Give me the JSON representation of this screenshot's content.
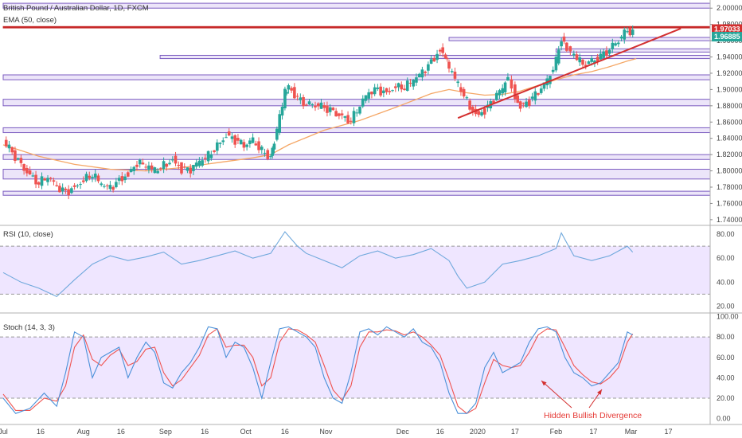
{
  "chart_data": {
    "type": "candlestick",
    "title": "British Pound / Australian Dollar, 1D, FXCM",
    "indicator": "EMA (50, close)",
    "price_axis": {
      "ticks": [
        "2.00000",
        "1.98000",
        "1.96000",
        "1.94000",
        "1.92000",
        "1.90000",
        "1.88000",
        "1.86000",
        "1.84000",
        "1.82000",
        "1.80000",
        "1.78000",
        "1.76000",
        "1.74000"
      ],
      "range": [
        1.734,
        2.01
      ]
    },
    "last_price_tags": [
      {
        "label": "1.97033",
        "value": 1.97033,
        "color": "#d32f2f"
      },
      {
        "label": "1.96885",
        "value": 1.96885,
        "color": "#26a69a"
      }
    ],
    "x_labels": [
      "Jul",
      "16",
      "Aug",
      "16",
      "Sep",
      "16",
      "Oct",
      "16",
      "Nov",
      "Dec",
      "16",
      "2020",
      "17",
      "Feb",
      "17",
      "Mar",
      "17"
    ],
    "x_label_weeks": [
      0,
      2.1,
      4.5,
      6.6,
      9.1,
      11.3,
      13.6,
      15.8,
      18.1,
      22.4,
      24.5,
      26.6,
      28.7,
      31,
      33.1,
      35.2,
      37.3
    ],
    "close_points": [
      [
        0,
        1.835
      ],
      [
        0.5,
        1.822
      ],
      [
        1,
        1.808
      ],
      [
        1.5,
        1.796
      ],
      [
        2,
        1.785
      ],
      [
        2.5,
        1.792
      ],
      [
        3,
        1.779
      ],
      [
        3.5,
        1.774
      ],
      [
        4,
        1.781
      ],
      [
        4.5,
        1.79
      ],
      [
        5,
        1.795
      ],
      [
        5.5,
        1.782
      ],
      [
        6,
        1.778
      ],
      [
        6.5,
        1.79
      ],
      [
        7,
        1.797
      ],
      [
        7.5,
        1.81
      ],
      [
        8,
        1.805
      ],
      [
        8.5,
        1.799
      ],
      [
        9,
        1.807
      ],
      [
        9.5,
        1.815
      ],
      [
        10,
        1.803
      ],
      [
        10.5,
        1.801
      ],
      [
        11,
        1.81
      ],
      [
        11.5,
        1.818
      ],
      [
        12,
        1.832
      ],
      [
        12.5,
        1.845
      ],
      [
        13,
        1.838
      ],
      [
        13.5,
        1.83
      ],
      [
        14,
        1.837
      ],
      [
        14.5,
        1.825
      ],
      [
        15,
        1.818
      ],
      [
        15.2,
        1.835
      ],
      [
        15.5,
        1.865
      ],
      [
        15.8,
        1.895
      ],
      [
        16,
        1.905
      ],
      [
        16.5,
        1.89
      ],
      [
        17,
        1.882
      ],
      [
        17.5,
        1.88
      ],
      [
        18,
        1.877
      ],
      [
        18.5,
        1.873
      ],
      [
        19,
        1.868
      ],
      [
        19.5,
        1.862
      ],
      [
        20,
        1.88
      ],
      [
        20.5,
        1.895
      ],
      [
        21,
        1.9
      ],
      [
        21.5,
        1.897
      ],
      [
        22,
        1.905
      ],
      [
        22.5,
        1.902
      ],
      [
        23,
        1.91
      ],
      [
        23.5,
        1.92
      ],
      [
        24,
        1.935
      ],
      [
        24.5,
        1.95
      ],
      [
        24.8,
        1.94
      ],
      [
        25,
        1.925
      ],
      [
        25.5,
        1.905
      ],
      [
        26,
        1.885
      ],
      [
        26.5,
        1.87
      ],
      [
        27,
        1.875
      ],
      [
        27.5,
        1.888
      ],
      [
        28,
        1.9
      ],
      [
        28.3,
        1.915
      ],
      [
        28.7,
        1.892
      ],
      [
        29,
        1.88
      ],
      [
        29.5,
        1.886
      ],
      [
        30,
        1.896
      ],
      [
        30.5,
        1.91
      ],
      [
        31,
        1.935
      ],
      [
        31.3,
        1.965
      ],
      [
        31.6,
        1.95
      ],
      [
        32,
        1.94
      ],
      [
        32.5,
        1.93
      ],
      [
        33,
        1.935
      ],
      [
        33.5,
        1.942
      ],
      [
        34,
        1.95
      ],
      [
        34.5,
        1.96
      ],
      [
        35,
        1.972
      ],
      [
        35.3,
        1.969
      ]
    ],
    "ema_points": [
      [
        0,
        1.832
      ],
      [
        2,
        1.818
      ],
      [
        4,
        1.808
      ],
      [
        6,
        1.802
      ],
      [
        8,
        1.8
      ],
      [
        10,
        1.804
      ],
      [
        12,
        1.81
      ],
      [
        14,
        1.816
      ],
      [
        15,
        1.82
      ],
      [
        16,
        1.832
      ],
      [
        18,
        1.85
      ],
      [
        20,
        1.862
      ],
      [
        22,
        1.878
      ],
      [
        24,
        1.895
      ],
      [
        25,
        1.9
      ],
      [
        26,
        1.896
      ],
      [
        27,
        1.893
      ],
      [
        28,
        1.894
      ],
      [
        29,
        1.898
      ],
      [
        30,
        1.905
      ],
      [
        31,
        1.912
      ],
      [
        32,
        1.918
      ],
      [
        33,
        1.922
      ],
      [
        34,
        1.928
      ],
      [
        35,
        1.935
      ],
      [
        35.5,
        1.938
      ]
    ],
    "horizontal_zones": [
      {
        "low": 2.0,
        "high": 2.006,
        "from": 0
      },
      {
        "low": 1.9765,
        "high": 1.9775,
        "from": 0,
        "color": "#c62828"
      },
      {
        "low": 1.96,
        "high": 1.964,
        "from": 25
      },
      {
        "low": 1.946,
        "high": 1.95,
        "from": 31
      },
      {
        "low": 1.938,
        "high": 1.942,
        "from": 8.8
      },
      {
        "low": 1.912,
        "high": 1.918,
        "from": 0
      },
      {
        "low": 1.88,
        "high": 1.888,
        "from": 0
      },
      {
        "low": 1.847,
        "high": 1.853,
        "from": 0
      },
      {
        "low": 1.814,
        "high": 1.82,
        "from": 0
      },
      {
        "low": 1.79,
        "high": 1.802,
        "from": 0
      },
      {
        "low": 1.77,
        "high": 1.775,
        "from": 0
      }
    ],
    "trendline": {
      "from": [
        25.5,
        1.865
      ],
      "to": [
        38,
        1.975
      ],
      "color": "#d32f2f"
    },
    "rsi": {
      "label": "RSI (10, close)",
      "ticks": [
        "80.00",
        "60.00",
        "40.00",
        "20.00"
      ],
      "range": [
        15,
        86
      ],
      "band": [
        30,
        70
      ],
      "points": [
        [
          0,
          48
        ],
        [
          1,
          40
        ],
        [
          2,
          35
        ],
        [
          3,
          28
        ],
        [
          4,
          42
        ],
        [
          5,
          55
        ],
        [
          6,
          62
        ],
        [
          7,
          58
        ],
        [
          8,
          61
        ],
        [
          9,
          65
        ],
        [
          10,
          55
        ],
        [
          11,
          58
        ],
        [
          12,
          62
        ],
        [
          13,
          66
        ],
        [
          14,
          60
        ],
        [
          15,
          64
        ],
        [
          15.8,
          82
        ],
        [
          16.5,
          70
        ],
        [
          17,
          64
        ],
        [
          18,
          58
        ],
        [
          19,
          52
        ],
        [
          20,
          62
        ],
        [
          21,
          66
        ],
        [
          22,
          60
        ],
        [
          23,
          63
        ],
        [
          24,
          68
        ],
        [
          25,
          58
        ],
        [
          25.5,
          45
        ],
        [
          26,
          35
        ],
        [
          27,
          40
        ],
        [
          28,
          55
        ],
        [
          29,
          58
        ],
        [
          30,
          62
        ],
        [
          31,
          68
        ],
        [
          31.3,
          81
        ],
        [
          32,
          62
        ],
        [
          33,
          58
        ],
        [
          34,
          62
        ],
        [
          35,
          70
        ],
        [
          35.3,
          65
        ]
      ]
    },
    "stoch": {
      "label": "Stoch (14, 3, 3)",
      "ticks": [
        "100.00",
        "80.00",
        "60.00",
        "40.00",
        "20.00",
        "0.00"
      ],
      "range": [
        -5,
        102
      ],
      "band": [
        20,
        80
      ],
      "k": [
        [
          0,
          20
        ],
        [
          0.7,
          5
        ],
        [
          1.5,
          10
        ],
        [
          2.3,
          25
        ],
        [
          3,
          12
        ],
        [
          3.5,
          45
        ],
        [
          4,
          85
        ],
        [
          4.5,
          80
        ],
        [
          5,
          40
        ],
        [
          5.5,
          60
        ],
        [
          6,
          65
        ],
        [
          6.5,
          70
        ],
        [
          7,
          40
        ],
        [
          7.5,
          60
        ],
        [
          8,
          75
        ],
        [
          8.5,
          65
        ],
        [
          9,
          35
        ],
        [
          9.5,
          30
        ],
        [
          10,
          45
        ],
        [
          10.5,
          55
        ],
        [
          11,
          70
        ],
        [
          11.5,
          90
        ],
        [
          12,
          88
        ],
        [
          12.5,
          60
        ],
        [
          13,
          75
        ],
        [
          13.5,
          70
        ],
        [
          14,
          50
        ],
        [
          14.5,
          20
        ],
        [
          15,
          55
        ],
        [
          15.5,
          88
        ],
        [
          16,
          90
        ],
        [
          16.5,
          85
        ],
        [
          17,
          80
        ],
        [
          17.5,
          70
        ],
        [
          18,
          40
        ],
        [
          18.5,
          20
        ],
        [
          19,
          15
        ],
        [
          19.5,
          45
        ],
        [
          20,
          85
        ],
        [
          20.5,
          88
        ],
        [
          21,
          82
        ],
        [
          21.5,
          90
        ],
        [
          22,
          85
        ],
        [
          22.5,
          80
        ],
        [
          23,
          88
        ],
        [
          23.5,
          75
        ],
        [
          24,
          70
        ],
        [
          24.5,
          55
        ],
        [
          25,
          25
        ],
        [
          25.5,
          5
        ],
        [
          26,
          5
        ],
        [
          26.5,
          15
        ],
        [
          27,
          50
        ],
        [
          27.5,
          65
        ],
        [
          28,
          45
        ],
        [
          28.5,
          50
        ],
        [
          29,
          55
        ],
        [
          29.5,
          75
        ],
        [
          30,
          88
        ],
        [
          30.5,
          90
        ],
        [
          31,
          85
        ],
        [
          31.5,
          60
        ],
        [
          32,
          45
        ],
        [
          32.5,
          40
        ],
        [
          33,
          32
        ],
        [
          33.5,
          35
        ],
        [
          34,
          45
        ],
        [
          34.5,
          55
        ],
        [
          35,
          85
        ],
        [
          35.3,
          82
        ]
      ],
      "d": [
        [
          0,
          24
        ],
        [
          0.7,
          8
        ],
        [
          1.5,
          8
        ],
        [
          2.3,
          20
        ],
        [
          3,
          17
        ],
        [
          3.5,
          32
        ],
        [
          4,
          70
        ],
        [
          4.5,
          82
        ],
        [
          5,
          58
        ],
        [
          5.5,
          52
        ],
        [
          6,
          62
        ],
        [
          6.5,
          68
        ],
        [
          7,
          52
        ],
        [
          7.5,
          56
        ],
        [
          8,
          68
        ],
        [
          8.5,
          70
        ],
        [
          9,
          45
        ],
        [
          9.5,
          32
        ],
        [
          10,
          38
        ],
        [
          10.5,
          50
        ],
        [
          11,
          62
        ],
        [
          11.5,
          82
        ],
        [
          12,
          88
        ],
        [
          12.5,
          70
        ],
        [
          13,
          72
        ],
        [
          13.5,
          72
        ],
        [
          14,
          60
        ],
        [
          14.5,
          32
        ],
        [
          15,
          40
        ],
        [
          15.5,
          75
        ],
        [
          16,
          88
        ],
        [
          16.5,
          87
        ],
        [
          17,
          82
        ],
        [
          17.5,
          75
        ],
        [
          18,
          52
        ],
        [
          18.5,
          28
        ],
        [
          19,
          18
        ],
        [
          19.5,
          32
        ],
        [
          20,
          70
        ],
        [
          20.5,
          85
        ],
        [
          21,
          85
        ],
        [
          21.5,
          87
        ],
        [
          22,
          86
        ],
        [
          22.5,
          82
        ],
        [
          23,
          85
        ],
        [
          23.5,
          80
        ],
        [
          24,
          72
        ],
        [
          24.5,
          62
        ],
        [
          25,
          38
        ],
        [
          25.5,
          12
        ],
        [
          26,
          5
        ],
        [
          26.5,
          10
        ],
        [
          27,
          35
        ],
        [
          27.5,
          58
        ],
        [
          28,
          52
        ],
        [
          28.5,
          50
        ],
        [
          29,
          52
        ],
        [
          29.5,
          65
        ],
        [
          30,
          82
        ],
        [
          30.5,
          88
        ],
        [
          31,
          87
        ],
        [
          31.5,
          70
        ],
        [
          32,
          52
        ],
        [
          32.5,
          43
        ],
        [
          33,
          36
        ],
        [
          33.5,
          34
        ],
        [
          34,
          40
        ],
        [
          34.5,
          50
        ],
        [
          35,
          75
        ],
        [
          35.3,
          83
        ]
      ]
    },
    "annotation": "Hidden Bullish Divergence",
    "colors": {
      "up": "#26a69a",
      "down": "#ef5350",
      "ema": "#f5a766",
      "rsi": "#6fa8dc",
      "k": "#4a90d9",
      "d": "#ef5350",
      "band": "#efe6ff",
      "zone": "#e6dcf7",
      "zone_border": "#7b5cc0",
      "red": "#d32f2f"
    }
  }
}
